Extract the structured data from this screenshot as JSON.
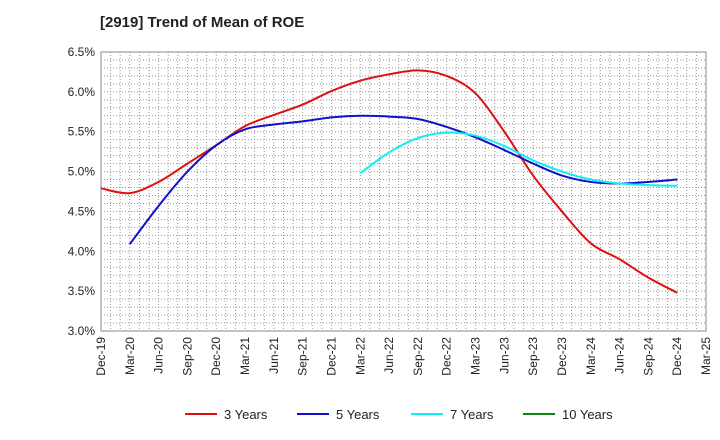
{
  "chart_data": {
    "type": "line",
    "title": "[2919]  Trend of Mean of ROE",
    "xlabel": "",
    "ylabel": "",
    "ylim": [
      3.0,
      6.5
    ],
    "y_ticks": [
      3.0,
      3.5,
      4.0,
      4.5,
      5.0,
      5.5,
      6.0,
      6.5
    ],
    "y_tick_labels": [
      "3.0%",
      "3.5%",
      "4.0%",
      "4.5%",
      "5.0%",
      "5.5%",
      "6.0%",
      "6.5%"
    ],
    "categories": [
      "Dec-19",
      "Mar-20",
      "Jun-20",
      "Sep-20",
      "Dec-20",
      "Mar-21",
      "Jun-21",
      "Sep-21",
      "Dec-21",
      "Mar-22",
      "Jun-22",
      "Sep-22",
      "Dec-22",
      "Mar-23",
      "Jun-23",
      "Sep-23",
      "Dec-23",
      "Mar-24",
      "Jun-24",
      "Sep-24",
      "Dec-24",
      "Mar-25"
    ],
    "grid": true,
    "legend_position": "bottom",
    "series": [
      {
        "name": "3 Years",
        "color": "#dd1111",
        "values": [
          4.79,
          4.73,
          4.87,
          5.1,
          5.33,
          5.57,
          5.71,
          5.84,
          6.01,
          6.14,
          6.22,
          6.27,
          6.2,
          5.98,
          5.5,
          4.95,
          4.5,
          4.1,
          3.9,
          3.67,
          3.48,
          null
        ]
      },
      {
        "name": "5 Years",
        "color": "#1111cc",
        "values": [
          null,
          4.09,
          4.57,
          5.0,
          5.33,
          5.53,
          5.59,
          5.63,
          5.68,
          5.7,
          5.69,
          5.66,
          5.56,
          5.43,
          5.27,
          5.1,
          4.95,
          4.87,
          4.85,
          4.87,
          4.9,
          null
        ]
      },
      {
        "name": "7 Years",
        "color": "#11eeee",
        "values": [
          null,
          null,
          null,
          null,
          null,
          null,
          null,
          null,
          null,
          4.98,
          5.24,
          5.42,
          5.49,
          5.45,
          5.32,
          5.14,
          5.0,
          4.9,
          4.85,
          4.83,
          4.82,
          null
        ]
      },
      {
        "name": "10 Years",
        "color": "#118811",
        "values": [
          null,
          null,
          null,
          null,
          null,
          null,
          null,
          null,
          null,
          null,
          null,
          null,
          null,
          null,
          null,
          null,
          null,
          null,
          null,
          null,
          null,
          null
        ]
      }
    ]
  }
}
